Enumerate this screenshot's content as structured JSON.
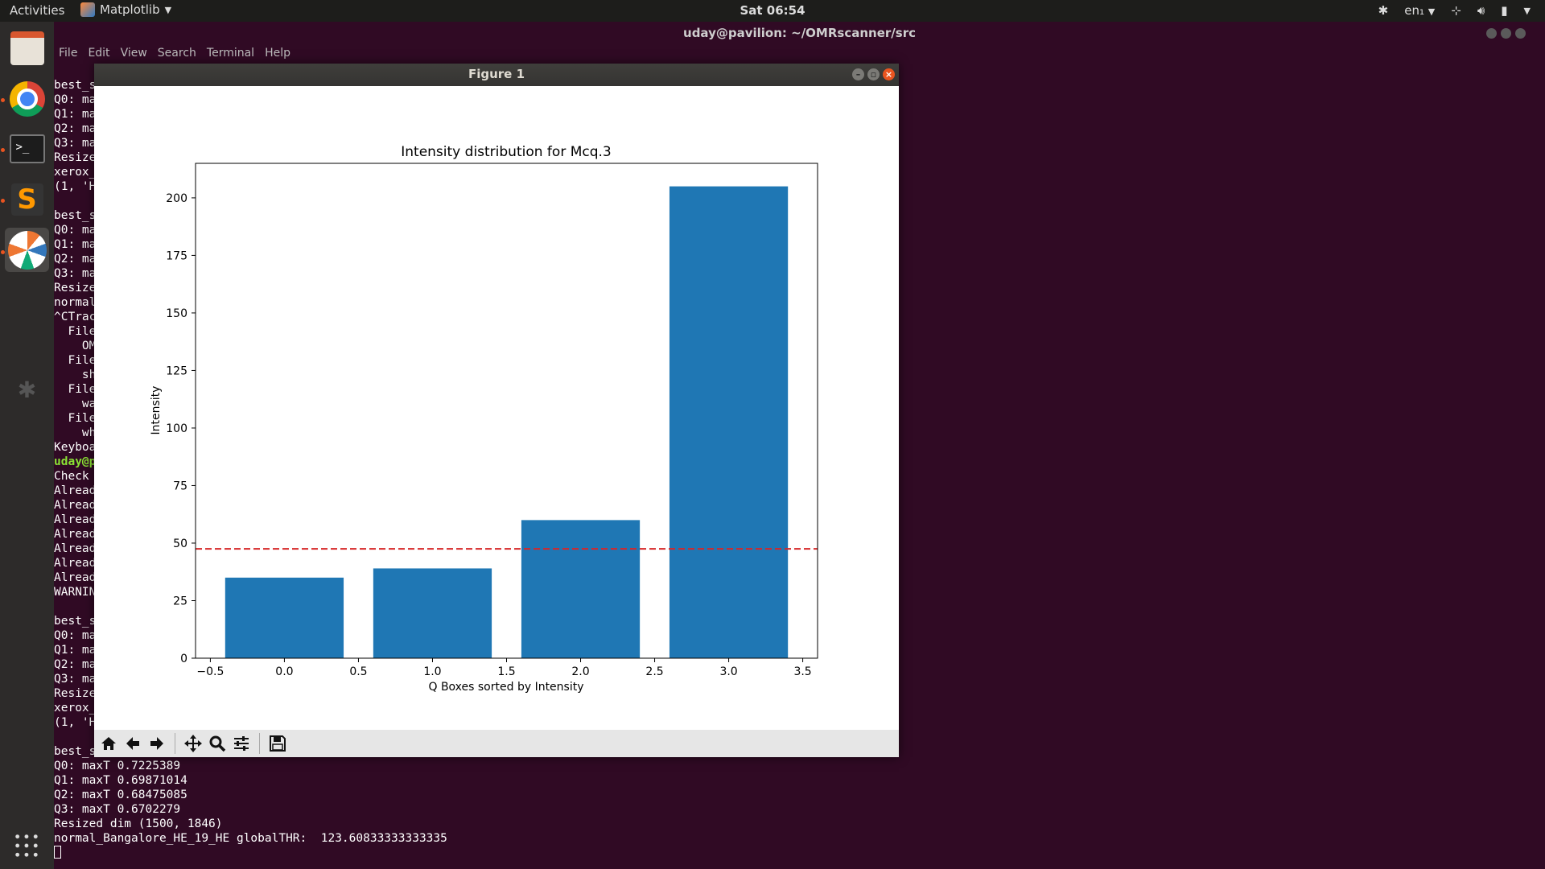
{
  "topbar": {
    "activities": "Activities",
    "app_name": "Matplotlib",
    "clock": "Sat 06:54",
    "lang": "en₁"
  },
  "terminal": {
    "title": "uday@pavilion: ~/OMRscanner/src",
    "menu": [
      "File",
      "Edit",
      "View",
      "Search",
      "Terminal",
      "Help"
    ],
    "visible_fragments": [
      "best_s",
      "Q0: ma",
      "Q1: ma",
      "Q2: ma",
      "Q3: ma",
      "Resize",
      "xerox_",
      "(1, 'H",
      "",
      "best_s",
      "Q0: ma",
      "Q1: ma",
      "Q2: ma",
      "Q3: ma",
      "Resize",
      "normal",
      "^CTrac",
      "  File",
      "    OM",
      "  File",
      "    sh",
      "  File",
      "    wa",
      "  File",
      "    wh",
      "Keyboa",
      "uday@p",
      "Check",
      "Alread",
      "Alread",
      "Alread",
      "Alread",
      "Alread",
      "Alread",
      "Alread",
      "WARNIN",
      "",
      "best_s",
      "Q0: ma",
      "Q1: ma",
      "Q2: ma",
      "Q3: ma",
      "Resize",
      "xerox_",
      "(1, 'H",
      "",
      "best_s"
    ],
    "full_lines": [
      "Q0: maxT 0.7225389",
      "Q1: maxT 0.69871014",
      "Q2: maxT 0.68475085",
      "Q3: maxT 0.6702279",
      "Resized dim (1500, 1846)",
      "normal_Bangalore_HE_19_HE globalTHR:  123.60833333333335"
    ]
  },
  "figure_window": {
    "title": "Figure 1"
  },
  "chart_data": {
    "type": "bar",
    "title": "Intensity distribution for Mcq.3",
    "xlabel": "Q Boxes sorted by Intensity",
    "ylabel": "Intensity",
    "x": [
      0,
      1,
      2,
      3
    ],
    "values": [
      35,
      39,
      60,
      205
    ],
    "bar_width": 0.8,
    "bar_color": "#1f77b4",
    "threshold": {
      "value": 47.5,
      "color": "#d62728",
      "style": "dashed"
    },
    "xlim": [
      -0.6,
      3.6
    ],
    "ylim": [
      0,
      215
    ],
    "xticks": [
      -0.5,
      0.0,
      0.5,
      1.0,
      1.5,
      2.0,
      2.5,
      3.0,
      3.5
    ],
    "xtick_labels": [
      "−0.5",
      "0.0",
      "0.5",
      "1.0",
      "1.5",
      "2.0",
      "2.5",
      "3.0",
      "3.5"
    ],
    "yticks": [
      0,
      25,
      50,
      75,
      100,
      125,
      150,
      175,
      200
    ],
    "grid": false,
    "legend": "none"
  },
  "toolbar": {
    "buttons": [
      "home-icon",
      "back-icon",
      "forward-icon",
      "pan-icon",
      "zoom-icon",
      "configure-icon",
      "save-icon"
    ]
  }
}
